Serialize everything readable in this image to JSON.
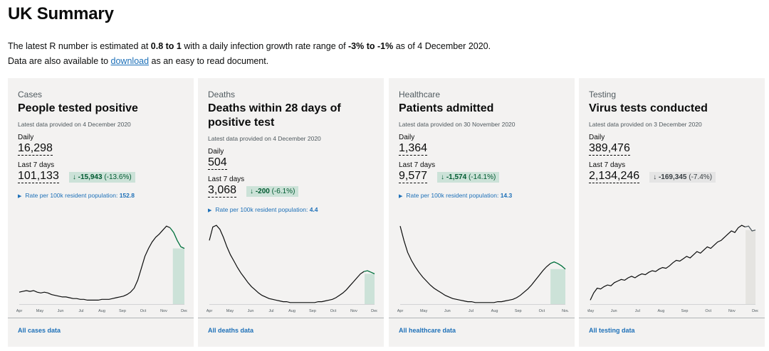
{
  "page": {
    "title": "UK Summary",
    "intro_line1_pre": "The latest R number is estimated at ",
    "r_value": "0.8 to 1",
    "intro_line1_mid": " with a daily infection growth rate range of ",
    "growth_rate": "-3% to -1%",
    "intro_line1_post": " as of 4 December 2020.",
    "intro_line2_pre": "Data are also available to ",
    "download_link": "download",
    "intro_line2_post": " as an easy to read document."
  },
  "labels": {
    "daily": "Daily",
    "last7": "Last 7 days"
  },
  "colors": {
    "link": "#1d70b8",
    "card_bg": "#f3f2f1",
    "green_badge": "#cce2d8",
    "green_text": "#005a30",
    "highlight_green": "#cce2d8",
    "highlight_grey": "#e5e4e1",
    "line": "#0b0c0c"
  },
  "cards": [
    {
      "category": "Cases",
      "heading": "People tested positive",
      "latest": "Latest data provided on 4 December 2020",
      "daily": "16,298",
      "last7": "101,133",
      "change_arrow": "↓",
      "change_value": "-15,943",
      "change_pct": "(-13.6%)",
      "change_style": "green",
      "rate_label": "Rate per 100k resident population: ",
      "rate_value": "152.8",
      "footer": "All cases data",
      "ticks": [
        "Apr",
        "May",
        "Jun",
        "Jul",
        "Aug",
        "Sep",
        "Oct",
        "Nov",
        "Dec"
      ],
      "series": [
        15,
        16,
        17,
        16,
        17,
        15,
        14,
        15,
        14,
        12,
        11,
        10,
        9,
        9,
        8,
        7,
        7,
        6,
        6,
        5,
        5,
        5,
        5,
        6,
        6,
        6,
        7,
        8,
        9,
        10,
        12,
        15,
        20,
        30,
        45,
        60,
        70,
        78,
        84,
        88,
        93,
        98,
        96,
        90,
        80,
        72,
        70
      ],
      "highlight_start": 0.93,
      "highlight": "green"
    },
    {
      "category": "Deaths",
      "heading": "Deaths within 28 days of positive test",
      "latest": "Latest data provided on 4 December 2020",
      "daily": "504",
      "last7": "3,068",
      "change_arrow": "↓",
      "change_value": "-200",
      "change_pct": "(-6.1%)",
      "change_style": "green",
      "rate_label": "Rate per 100k resident population: ",
      "rate_value": "4.4",
      "footer": "All deaths data",
      "ticks": [
        "Apr",
        "May",
        "Jun",
        "Jul",
        "Aug",
        "Sep",
        "Oct",
        "Nov",
        "Dec"
      ],
      "series": [
        80,
        97,
        99,
        94,
        84,
        72,
        62,
        54,
        46,
        39,
        33,
        27,
        22,
        18,
        14,
        11,
        9,
        7,
        6,
        5,
        4,
        3,
        3,
        2,
        2,
        2,
        2,
        2,
        2,
        2,
        2,
        3,
        3,
        4,
        5,
        6,
        8,
        11,
        14,
        18,
        23,
        28,
        33,
        38,
        41,
        42,
        40,
        38
      ],
      "highlight_start": 0.94,
      "highlight": "green"
    },
    {
      "category": "Healthcare",
      "heading": "Patients admitted",
      "latest": "Latest data provided on 30 November 2020",
      "daily": "1,364",
      "last7": "9,577",
      "change_arrow": "↓",
      "change_value": "-1,574",
      "change_pct": "(-14.1%)",
      "change_style": "green",
      "rate_label": "Rate per 100k resident population: ",
      "rate_value": "14.3",
      "footer": "All healthcare data",
      "ticks": [
        "Apr",
        "May",
        "Jun",
        "Jul",
        "Aug",
        "Sep",
        "Oct",
        "Nov"
      ],
      "series": [
        98,
        80,
        65,
        55,
        47,
        40,
        34,
        29,
        24,
        20,
        17,
        14,
        11,
        9,
        7,
        6,
        5,
        4,
        3,
        3,
        2,
        2,
        2,
        2,
        2,
        2,
        3,
        3,
        4,
        5,
        6,
        8,
        11,
        15,
        19,
        24,
        30,
        36,
        42,
        47,
        51,
        53,
        51,
        48,
        44
      ],
      "highlight_start": 0.91,
      "highlight": "green"
    },
    {
      "category": "Testing",
      "heading": "Virus tests conducted",
      "latest": "Latest data provided on 3 December 2020",
      "daily": "389,476",
      "last7": "2,134,246",
      "change_arrow": "↓",
      "change_value": "-169,345",
      "change_pct": "(-7.4%)",
      "change_style": "grey",
      "rate_label": "",
      "rate_value": "",
      "footer": "All testing data",
      "ticks": [
        "May",
        "Jun",
        "Jul",
        "Aug",
        "Sep",
        "Oct",
        "Nov",
        "Dec"
      ],
      "series": [
        5,
        14,
        20,
        19,
        22,
        24,
        23,
        27,
        29,
        31,
        30,
        33,
        35,
        33,
        36,
        38,
        37,
        40,
        42,
        41,
        44,
        46,
        45,
        48,
        52,
        55,
        54,
        57,
        60,
        58,
        62,
        66,
        64,
        68,
        72,
        70,
        74,
        78,
        80,
        84,
        88,
        92,
        90,
        96,
        99,
        97,
        98,
        92,
        93
      ],
      "highlight_start": 0.94,
      "highlight": "grey"
    }
  ]
}
